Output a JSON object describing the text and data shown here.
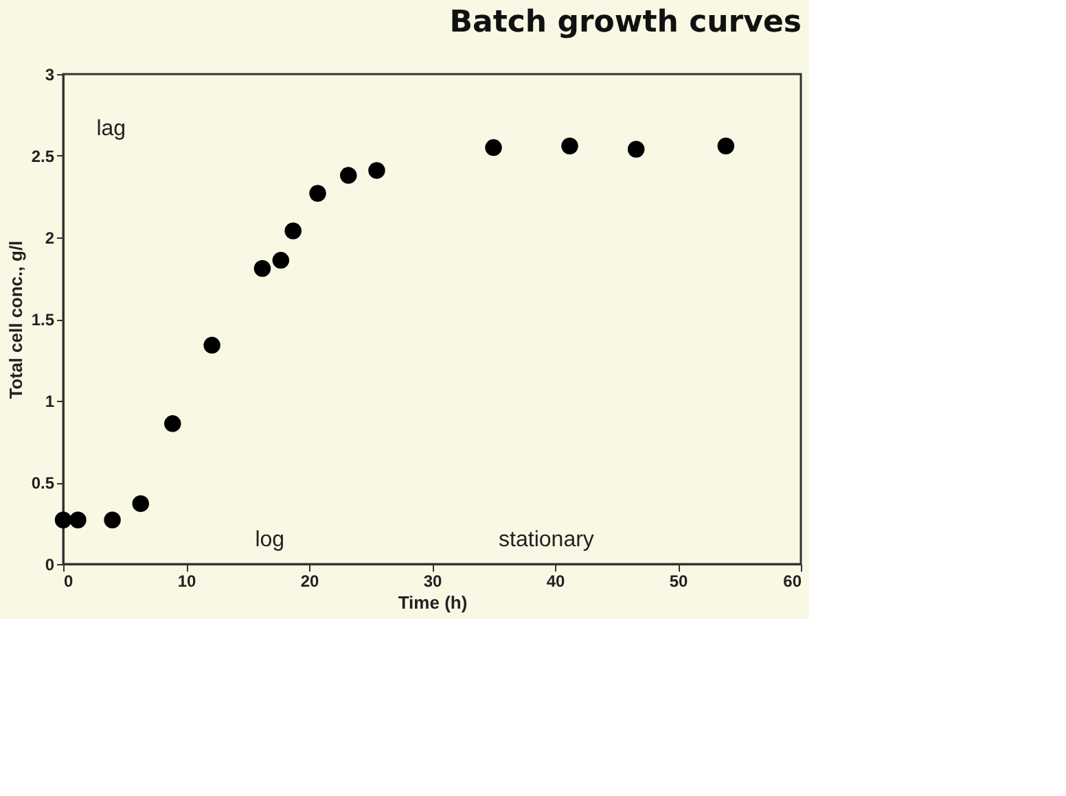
{
  "chart_data": {
    "type": "scatter",
    "title": "Batch growth curves",
    "xlabel": "Time (h)",
    "ylabel": "Total cell conc., g/l",
    "x": [
      0,
      1.2,
      4.0,
      6.3,
      8.9,
      12.1,
      16.2,
      17.7,
      18.7,
      20.7,
      23.2,
      25.5,
      35.0,
      41.2,
      46.6,
      53.9
    ],
    "series": [
      {
        "color": "#000000",
        "values": [
          0.27,
          0.27,
          0.27,
          0.37,
          0.86,
          1.34,
          1.81,
          1.86,
          2.04,
          2.27,
          2.38,
          2.41,
          2.55,
          2.56,
          2.54,
          2.56
        ]
      }
    ],
    "xlim": [
      0,
      60
    ],
    "xticks": [
      0,
      10,
      20,
      30,
      40,
      50,
      60
    ],
    "ylim": [
      0,
      3
    ],
    "yticks": [
      0,
      0.5,
      1,
      1.5,
      2,
      2.5,
      3
    ],
    "annotations": [
      "lag",
      "log",
      "stationary"
    ],
    "marker": "circle",
    "grid": false
  }
}
